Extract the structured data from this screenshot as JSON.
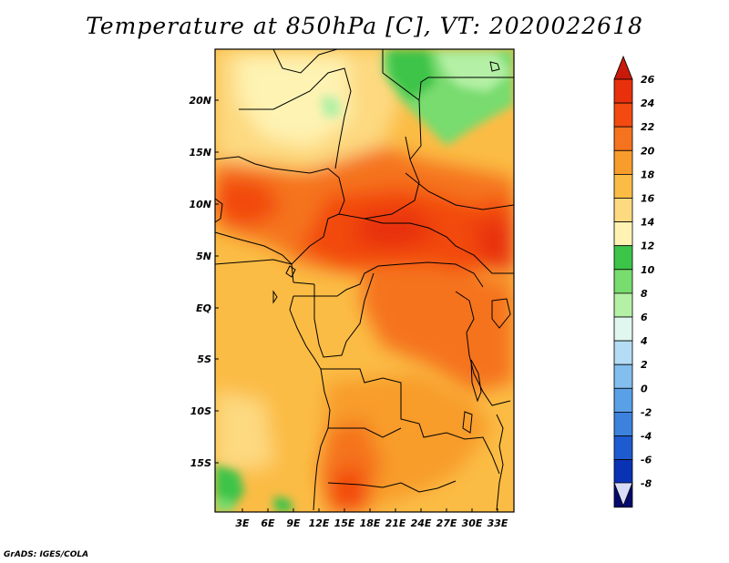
{
  "title": "Temperature at 850hPa [C], VT: 2020022618",
  "map": {
    "lat_labels": [
      "20N",
      "15N",
      "10N",
      "5N",
      "EQ",
      "5S",
      "10S",
      "15S"
    ],
    "lon_labels": [
      "3E",
      "6E",
      "9E",
      "12E",
      "15E",
      "18E",
      "21E",
      "24E",
      "27E",
      "30E",
      "33E"
    ]
  },
  "colorbar": {
    "labels": [
      "26",
      "24",
      "22",
      "20",
      "18",
      "16",
      "14",
      "12",
      "10",
      "8",
      "6",
      "4",
      "2",
      "0",
      "-2",
      "-4",
      "-6",
      "-8"
    ],
    "colors": [
      "#e8300c",
      "#f24a10",
      "#f5731f",
      "#f89c2c",
      "#fbbc45",
      "#fdd980",
      "#fef3b2",
      "#3cc449",
      "#78dc6e",
      "#b4f0a5",
      "#e0f7ef",
      "#b4dcf4",
      "#82beee",
      "#5aa0e6",
      "#3c82dc",
      "#1e5ad0",
      "#0a32b4",
      "#050a6e"
    ],
    "over_color": "#c8190a",
    "under_color": "#d8dcf6"
  },
  "credit": "GrADS: IGES/COLA"
}
